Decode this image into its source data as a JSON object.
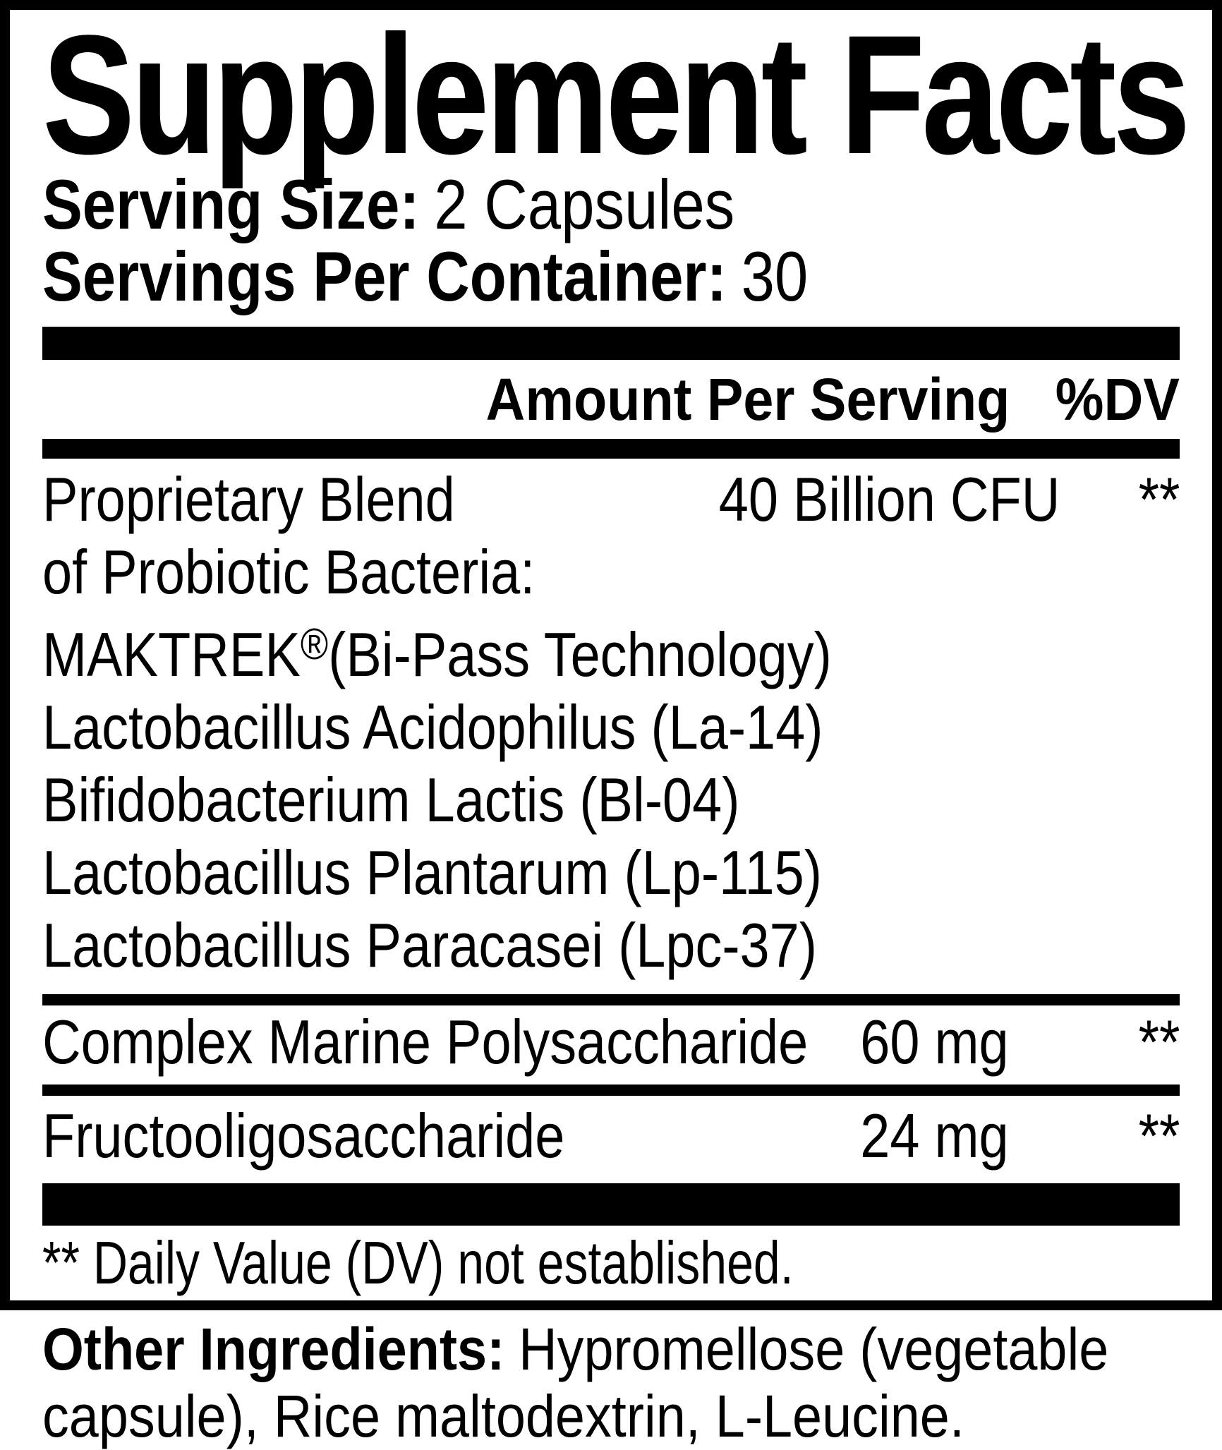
{
  "panel": {
    "title": "Supplement Facts",
    "serving_size": {
      "label": "Serving Size:",
      "value": "2 Capsules"
    },
    "servings_per_container": {
      "label": "Servings Per Container:",
      "value": "30"
    },
    "columns": {
      "amount_header": "Amount Per Serving",
      "dv_header": "%DV"
    },
    "rows": {
      "blend": {
        "line1": "Proprietary Blend",
        "line2": "of Probiotic Bacteria:",
        "maktrek": "MAKTREK",
        "reg_mark": "®",
        "maktrek_suffix": "(Bi-Pass Technology)",
        "line4": "Lactobacillus Acidophilus (La-14)",
        "line5": "Bifidobacterium Lactis (Bl-04)",
        "line6": "Lactobacillus Plantarum (Lp-115)",
        "line7": "Lactobacillus Paracasei (Lpc-37)",
        "amount": "40 Billion CFU",
        "dv": "**"
      },
      "complex_marine": {
        "name": "Complex Marine Polysaccharide",
        "amount": "60 mg",
        "dv": "**"
      },
      "fructooligosaccharide": {
        "name": "Fructooligosaccharide",
        "amount": "24 mg",
        "dv": "**"
      }
    },
    "footnote": "** Daily Value (DV) not established.",
    "other_ingredients": {
      "label": "Other Ingredients:",
      "value": "Hypromellose (vegetable capsule), Rice maltodextrin, L-Leucine."
    },
    "colors": {
      "ink": "#000000",
      "background": "#ffffff"
    }
  }
}
